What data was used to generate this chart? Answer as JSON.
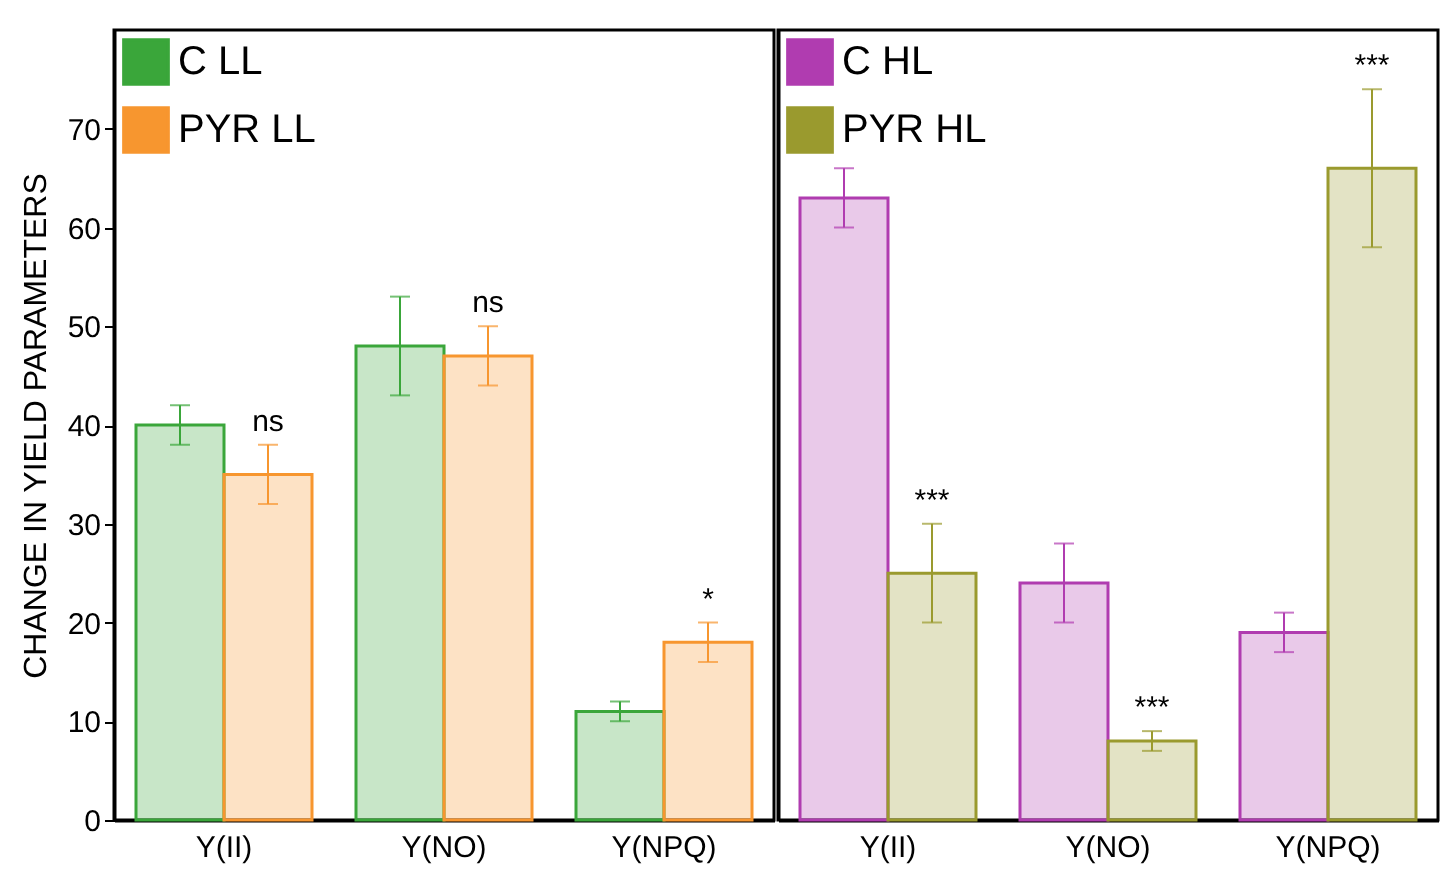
{
  "chart_data": [
    {
      "type": "bar",
      "ylabel": "CHANGE IN YIELD PARAMETERS",
      "categories": [
        "Y(II)",
        "Y(NO)",
        "Y(NPQ)"
      ],
      "ylim": [
        0,
        80
      ],
      "yticks": [
        0,
        10,
        20,
        30,
        40,
        50,
        60,
        70
      ],
      "grid": false,
      "legend": "top left",
      "series": [
        {
          "name": "C LL",
          "color": "#3aa63a",
          "values": [
            40,
            48,
            11
          ],
          "errors": [
            2,
            5,
            1
          ]
        },
        {
          "name": "PYR LL",
          "color": "#f7962f",
          "values": [
            35,
            47,
            18
          ],
          "errors": [
            3,
            3,
            2
          ]
        }
      ],
      "annotations": [
        {
          "text": "ns",
          "x": "Y(II)",
          "y": 35
        },
        {
          "text": "ns",
          "x": "Y(NO)",
          "y": 47
        },
        {
          "text": "*",
          "x": "Y(NPQ)",
          "y": 18
        }
      ]
    },
    {
      "type": "bar",
      "categories": [
        "Y(II)",
        "Y(NO)",
        "Y(NPQ)"
      ],
      "ylim": [
        0,
        80
      ],
      "yticks": [
        0,
        10,
        20,
        30,
        40,
        50,
        60,
        70
      ],
      "grid": false,
      "legend": "top left",
      "tick_labels": "x",
      "series": [
        {
          "name": "C HL",
          "color": "#b03cb0",
          "values": [
            63,
            24,
            19
          ],
          "errors": [
            3,
            4,
            2
          ]
        },
        {
          "name": "PYR HL",
          "color": "#9a9a2e",
          "values": [
            25,
            8,
            66
          ],
          "errors": [
            5,
            1,
            8
          ]
        }
      ],
      "annotations": [
        {
          "text": "***",
          "x": "Y(II)",
          "y": 25
        },
        {
          "text": "***",
          "x": "Y(NO)",
          "y": 8
        },
        {
          "text": "***",
          "x": "Y(NPQ)",
          "y": 66
        }
      ]
    }
  ]
}
